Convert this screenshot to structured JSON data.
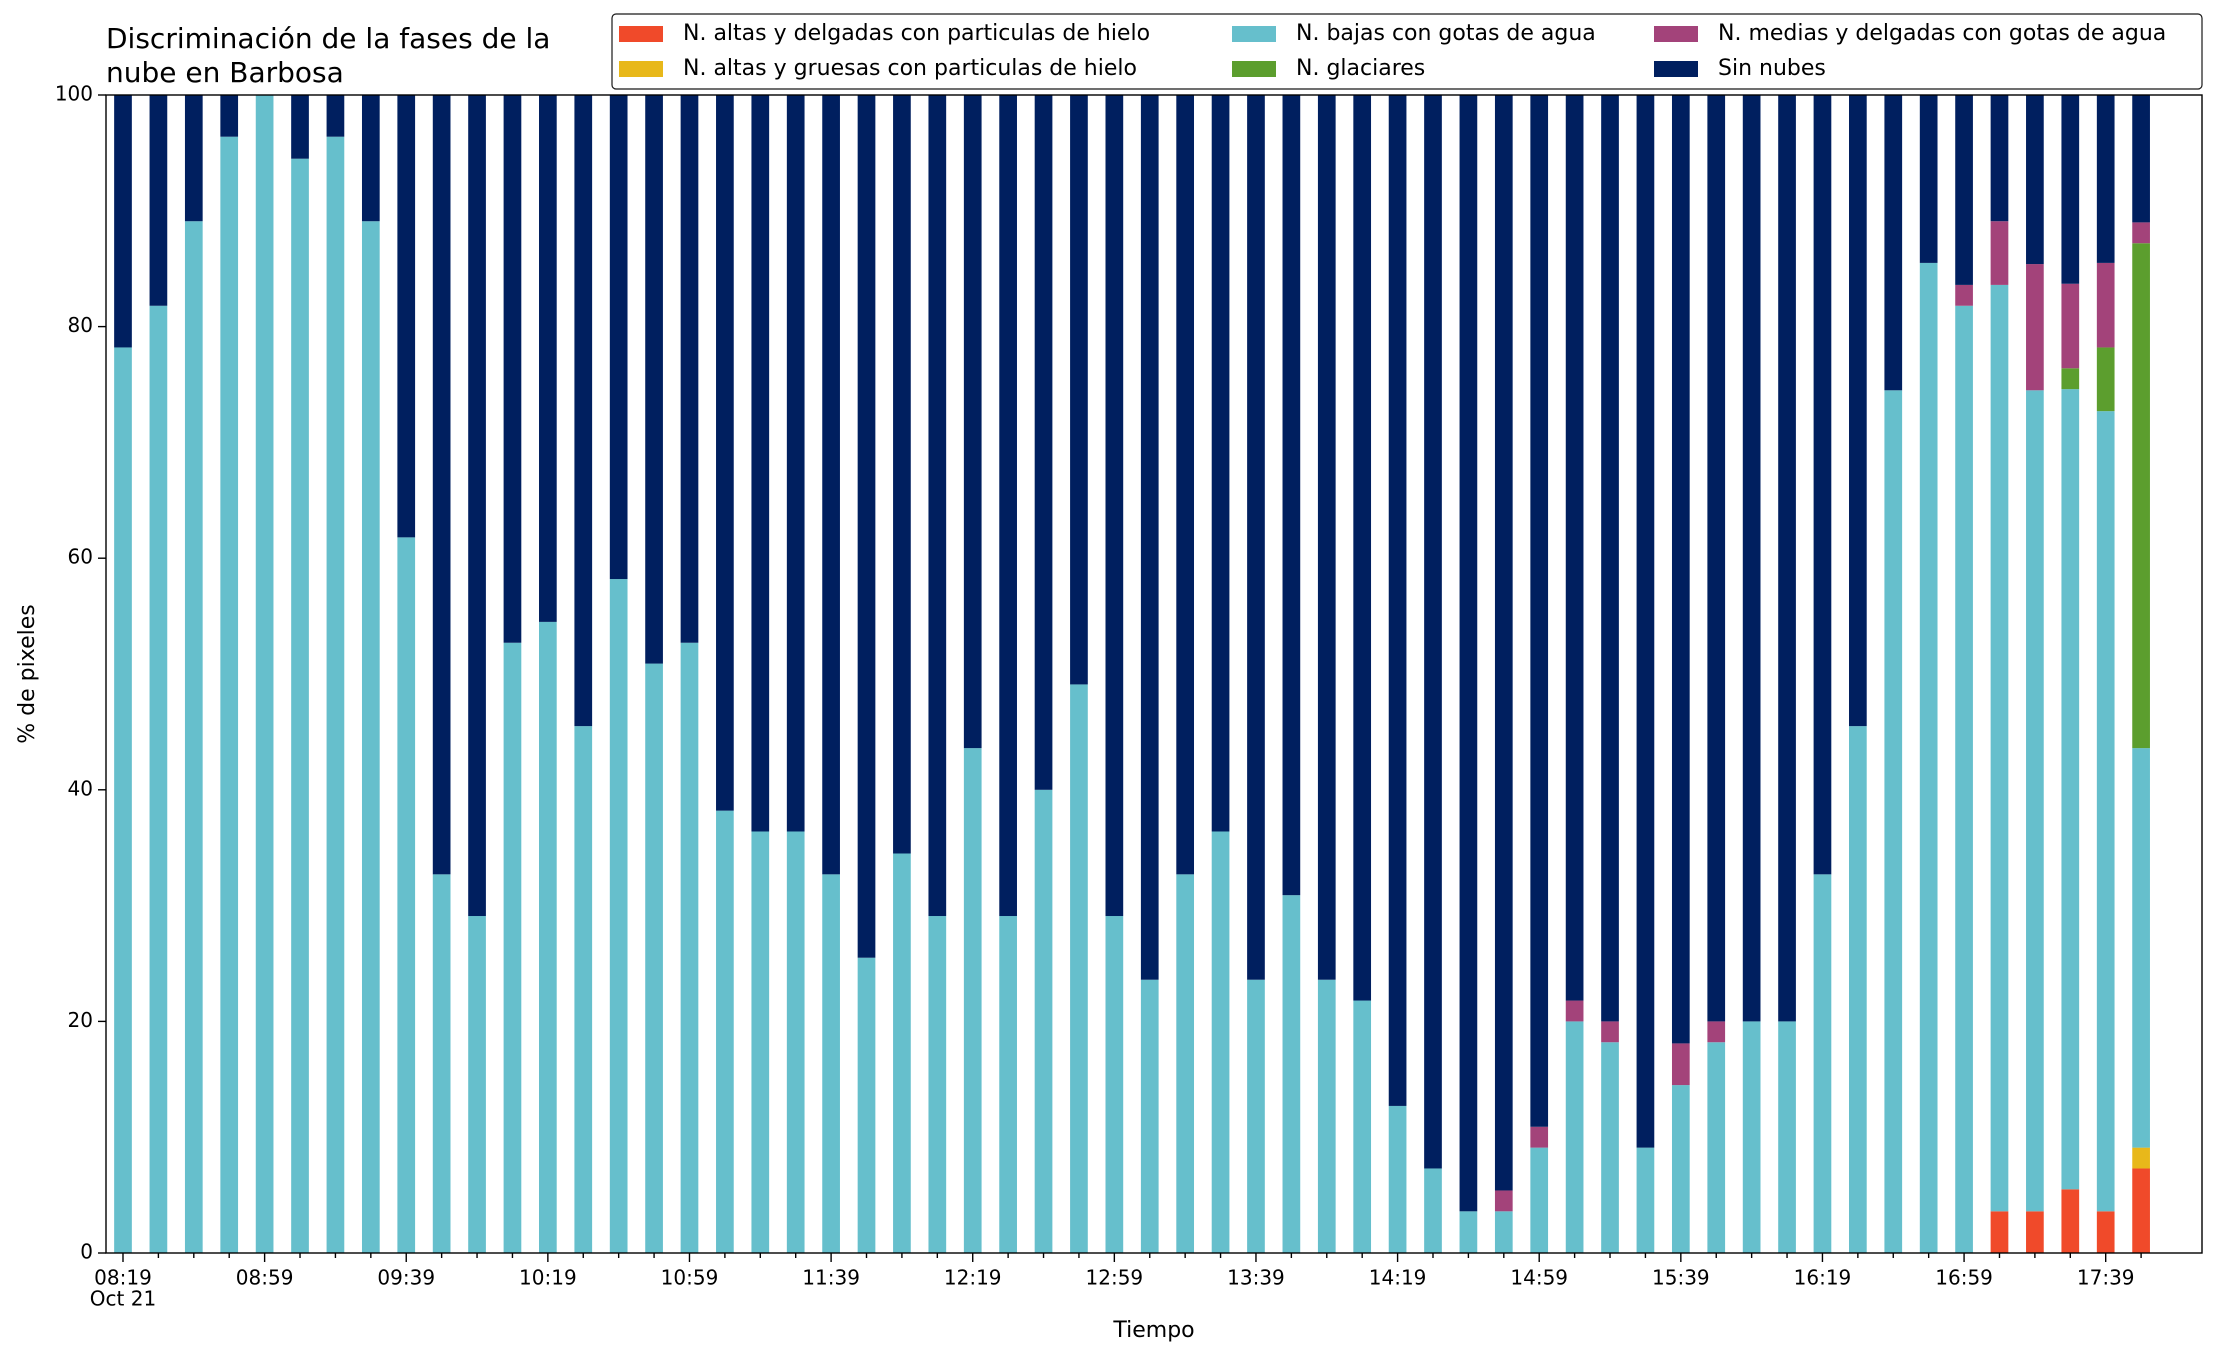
{
  "chart_data": {
    "type": "stacked_bar",
    "title": "Discriminación de la fases de la\nnube en Barbosa",
    "xlabel": "Tiempo",
    "ylabel": "% de pixeles",
    "x_date": "Oct 21",
    "categories": [
      "08:19",
      null,
      null,
      null,
      "08:59",
      null,
      null,
      null,
      "09:39",
      null,
      null,
      null,
      "10:19",
      null,
      null,
      null,
      "10:59",
      null,
      null,
      null,
      "11:39",
      null,
      null,
      null,
      "12:19",
      null,
      null,
      null,
      "12:59",
      null,
      null,
      null,
      "13:39",
      null,
      null,
      null,
      "14:19",
      null,
      null,
      null,
      "14:59",
      null,
      null,
      null,
      "15:39",
      null,
      null,
      null,
      "16:19",
      null,
      null,
      null,
      "16:59",
      null,
      null,
      null,
      "17:39",
      null
    ],
    "ylim": [
      0,
      100
    ],
    "yticks": [
      0,
      20,
      40,
      60,
      80,
      100
    ],
    "legend": "top-right",
    "series": [
      {
        "name": "N. altas y delgadas con particulas de hielo",
        "color": "#f04a2a",
        "values": [
          0,
          0,
          0,
          0,
          0,
          0,
          0,
          0,
          0,
          0,
          0,
          0,
          0,
          0,
          0,
          0,
          0,
          0,
          0,
          0,
          0,
          0,
          0,
          0,
          0,
          0,
          0,
          0,
          0,
          0,
          0,
          0,
          0,
          0,
          0,
          0,
          0,
          0,
          0,
          0,
          0,
          0,
          0,
          0,
          0,
          0,
          0,
          0,
          0,
          0,
          0,
          0,
          0,
          3.6,
          3.6,
          5.5,
          3.6,
          7.3
        ]
      },
      {
        "name": "N. altas y gruesas con particulas de hielo",
        "color": "#e8b81a",
        "values": [
          0,
          0,
          0,
          0,
          0,
          0,
          0,
          0,
          0,
          0,
          0,
          0,
          0,
          0,
          0,
          0,
          0,
          0,
          0,
          0,
          0,
          0,
          0,
          0,
          0,
          0,
          0,
          0,
          0,
          0,
          0,
          0,
          0,
          0,
          0,
          0,
          0,
          0,
          0,
          0,
          0,
          0,
          0,
          0,
          0,
          0,
          0,
          0,
          0,
          0,
          0,
          0,
          0,
          0,
          0,
          0,
          0,
          1.8
        ]
      },
      {
        "name": "N. bajas con gotas de agua",
        "color": "#66bfcc",
        "values": [
          78.2,
          81.8,
          89.1,
          96.4,
          100,
          94.5,
          96.4,
          89.1,
          61.8,
          32.7,
          29.1,
          52.7,
          54.5,
          45.5,
          58.2,
          50.9,
          52.7,
          38.2,
          36.4,
          36.4,
          32.7,
          25.5,
          34.5,
          29.1,
          43.6,
          29.1,
          40.0,
          49.1,
          29.1,
          23.6,
          32.7,
          36.4,
          23.6,
          30.9,
          23.6,
          21.8,
          12.7,
          7.3,
          3.6,
          3.6,
          9.1,
          20.0,
          18.2,
          9.1,
          14.5,
          18.2,
          20.0,
          20.0,
          32.7,
          45.5,
          74.5,
          85.5,
          81.8,
          80.0,
          70.9,
          69.1,
          69.1,
          34.5
        ]
      },
      {
        "name": "N. glaciares",
        "color": "#5c9e2e",
        "values": [
          0,
          0,
          0,
          0,
          0,
          0,
          0,
          0,
          0,
          0,
          0,
          0,
          0,
          0,
          0,
          0,
          0,
          0,
          0,
          0,
          0,
          0,
          0,
          0,
          0,
          0,
          0,
          0,
          0,
          0,
          0,
          0,
          0,
          0,
          0,
          0,
          0,
          0,
          0,
          0,
          0,
          0,
          0,
          0,
          0,
          0,
          0,
          0,
          0,
          0,
          0,
          0,
          0,
          0,
          0,
          1.8,
          5.5,
          43.6
        ]
      },
      {
        "name": "N. medias y delgadas con gotas de agua",
        "color": "#a3437a",
        "values": [
          0,
          0,
          0,
          0,
          0,
          0,
          0,
          0,
          0,
          0,
          0,
          0,
          0,
          0,
          0,
          0,
          0,
          0,
          0,
          0,
          0,
          0,
          0,
          0,
          0,
          0,
          0,
          0,
          0,
          0,
          0,
          0,
          0,
          0,
          0,
          0,
          0,
          0,
          0,
          1.8,
          1.8,
          1.8,
          1.8,
          0,
          3.6,
          1.8,
          0,
          0,
          0,
          0,
          0,
          0,
          1.8,
          5.5,
          10.9,
          7.3,
          7.3,
          1.8
        ]
      },
      {
        "name": "Sin nubes",
        "color": "#001f5f",
        "values": [
          21.8,
          18.2,
          10.9,
          3.6,
          0,
          5.5,
          3.6,
          10.9,
          38.2,
          67.3,
          70.9,
          47.3,
          45.5,
          54.5,
          41.8,
          49.1,
          47.3,
          61.8,
          63.6,
          63.6,
          67.3,
          74.5,
          65.5,
          70.9,
          56.4,
          70.9,
          60.0,
          50.9,
          70.9,
          76.4,
          67.3,
          63.6,
          76.4,
          69.1,
          76.4,
          78.2,
          87.3,
          92.7,
          96.4,
          94.6,
          89.1,
          78.2,
          80.0,
          90.9,
          81.9,
          80.0,
          80.0,
          80.0,
          67.3,
          54.5,
          25.5,
          14.5,
          16.4,
          10.9,
          14.6,
          16.3,
          14.5,
          11.0
        ]
      }
    ]
  }
}
